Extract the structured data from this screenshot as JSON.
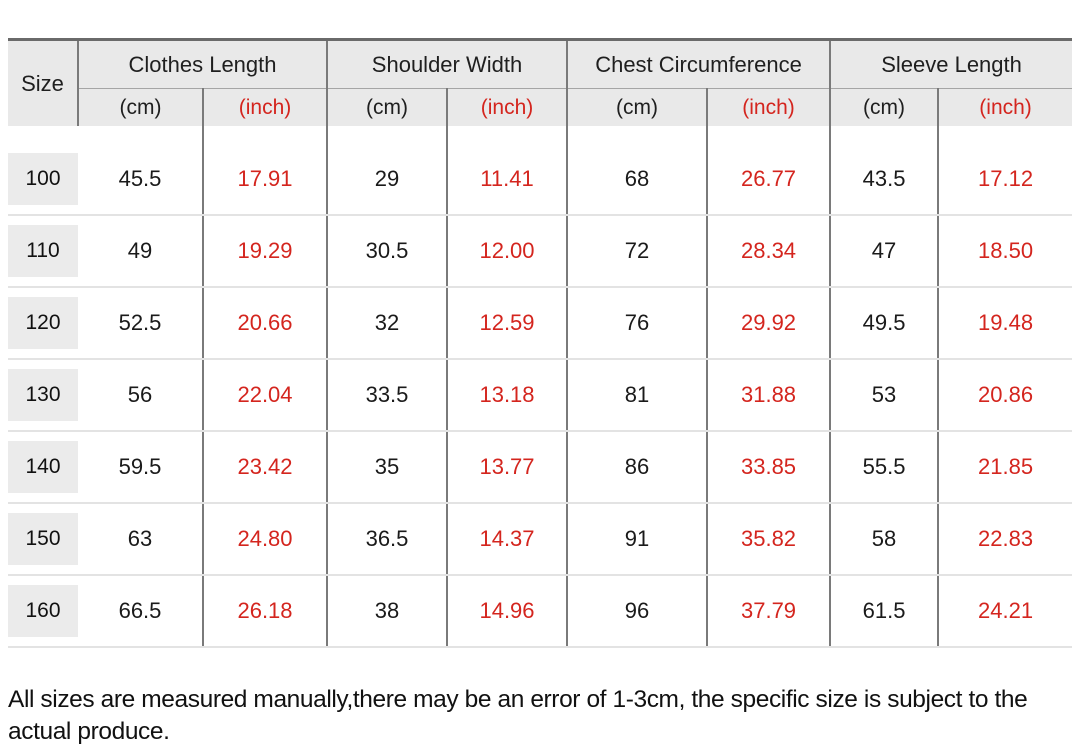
{
  "chart_data": {
    "type": "table",
    "column_groups": [
      "Size",
      "Clothes Length",
      "Shoulder Width",
      "Chest Circumference",
      "Sleeve Length"
    ],
    "unit_columns_per_group": [
      "(cm)",
      "(inch)"
    ],
    "rows": [
      {
        "size": "100",
        "clothes_length_cm": "45.5",
        "clothes_length_inch": "17.91",
        "shoulder_width_cm": "29",
        "shoulder_width_inch": "11.41",
        "chest_circumference_cm": "68",
        "chest_circumference_inch": "26.77",
        "sleeve_length_cm": "43.5",
        "sleeve_length_inch": "17.12"
      },
      {
        "size": "110",
        "clothes_length_cm": "49",
        "clothes_length_inch": "19.29",
        "shoulder_width_cm": "30.5",
        "shoulder_width_inch": "12.00",
        "chest_circumference_cm": "72",
        "chest_circumference_inch": "28.34",
        "sleeve_length_cm": "47",
        "sleeve_length_inch": "18.50"
      },
      {
        "size": "120",
        "clothes_length_cm": "52.5",
        "clothes_length_inch": "20.66",
        "shoulder_width_cm": "32",
        "shoulder_width_inch": "12.59",
        "chest_circumference_cm": "76",
        "chest_circumference_inch": "29.92",
        "sleeve_length_cm": "49.5",
        "sleeve_length_inch": "19.48"
      },
      {
        "size": "130",
        "clothes_length_cm": "56",
        "clothes_length_inch": "22.04",
        "shoulder_width_cm": "33.5",
        "shoulder_width_inch": "13.18",
        "chest_circumference_cm": "81",
        "chest_circumference_inch": "31.88",
        "sleeve_length_cm": "53",
        "sleeve_length_inch": "20.86"
      },
      {
        "size": "140",
        "clothes_length_cm": "59.5",
        "clothes_length_inch": "23.42",
        "shoulder_width_cm": "35",
        "shoulder_width_inch": "13.77",
        "chest_circumference_cm": "86",
        "chest_circumference_inch": "33.85",
        "sleeve_length_cm": "55.5",
        "sleeve_length_inch": "21.85"
      },
      {
        "size": "150",
        "clothes_length_cm": "63",
        "clothes_length_inch": "24.80",
        "shoulder_width_cm": "36.5",
        "shoulder_width_inch": "14.37",
        "chest_circumference_cm": "91",
        "chest_circumference_inch": "35.82",
        "sleeve_length_cm": "58",
        "sleeve_length_inch": "22.83"
      },
      {
        "size": "160",
        "clothes_length_cm": "66.5",
        "clothes_length_inch": "26.18",
        "shoulder_width_cm": "38",
        "shoulder_width_inch": "14.96",
        "chest_circumference_cm": "96",
        "chest_circumference_inch": "37.79",
        "sleeve_length_cm": "61.5",
        "sleeve_length_inch": "24.21"
      }
    ]
  },
  "table": {
    "size_label": "Size",
    "groups": [
      "Clothes Length",
      "Shoulder Width",
      "Chest Circumference",
      "Sleeve Length"
    ],
    "cm_label": "(cm)",
    "inch_label": "(inch)",
    "rows": [
      {
        "size": "100",
        "values": [
          "45.5",
          "17.91",
          "29",
          "11.41",
          "68",
          "26.77",
          "43.5",
          "17.12"
        ]
      },
      {
        "size": "110",
        "values": [
          "49",
          "19.29",
          "30.5",
          "12.00",
          "72",
          "28.34",
          "47",
          "18.50"
        ]
      },
      {
        "size": "120",
        "values": [
          "52.5",
          "20.66",
          "32",
          "12.59",
          "76",
          "29.92",
          "49.5",
          "19.48"
        ]
      },
      {
        "size": "130",
        "values": [
          "56",
          "22.04",
          "33.5",
          "13.18",
          "81",
          "31.88",
          "53",
          "20.86"
        ]
      },
      {
        "size": "140",
        "values": [
          "59.5",
          "23.42",
          "35",
          "13.77",
          "86",
          "33.85",
          "55.5",
          "21.85"
        ]
      },
      {
        "size": "150",
        "values": [
          "63",
          "24.80",
          "36.5",
          "14.37",
          "91",
          "35.82",
          "58",
          "22.83"
        ]
      },
      {
        "size": "160",
        "values": [
          "66.5",
          "26.18",
          "38",
          "14.96",
          "96",
          "37.79",
          "61.5",
          "24.21"
        ]
      }
    ]
  },
  "footer": {
    "note": "All sizes are measured manually,there may be an error of 1-3cm, the specific size is subject to the actual produce."
  },
  "colors": {
    "inch_red": "#d4251e",
    "header_bg": "#e9e9e9",
    "chip_bg": "#ebebeb",
    "border_dark": "#7a7a7a",
    "row_line": "#e3e3e3",
    "text": "#1a1a1a"
  }
}
